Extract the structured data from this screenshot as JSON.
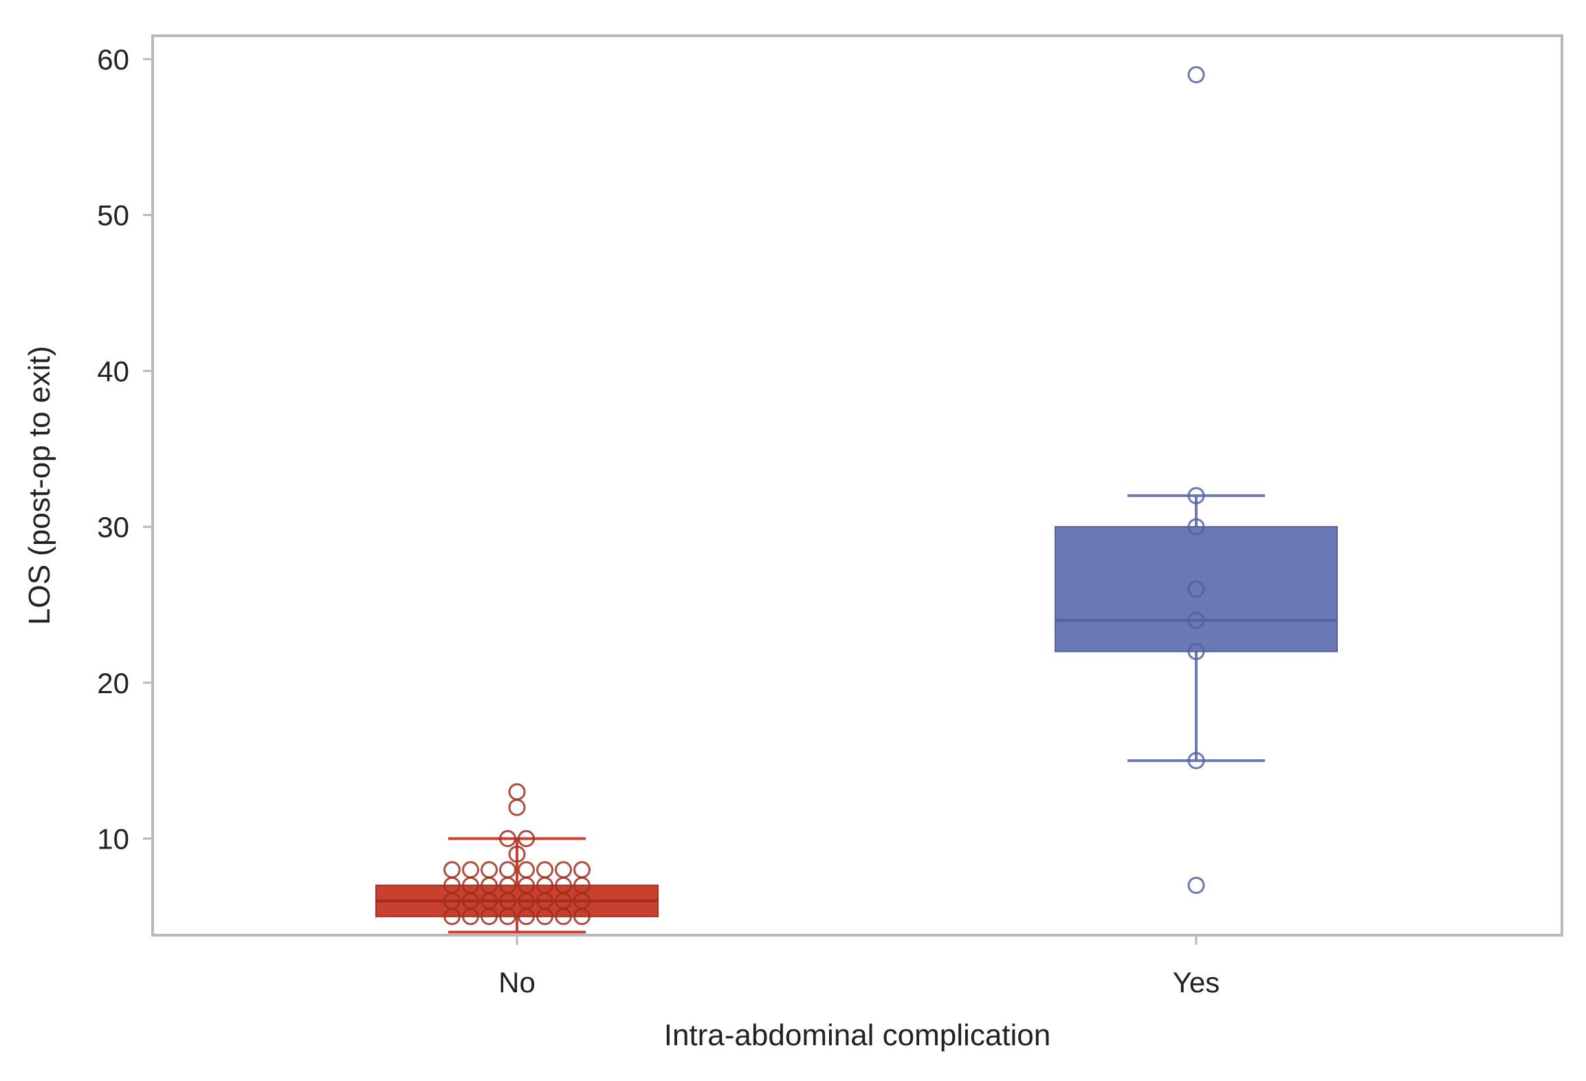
{
  "chart_data": {
    "type": "box",
    "title": "",
    "xlabel": "Intra-abdominal complication",
    "ylabel": "LOS (post-op to exit)",
    "ylim": [
      3.8,
      61.5
    ],
    "yticks": [
      10,
      20,
      30,
      40,
      50,
      60
    ],
    "grid": false,
    "legend": "none",
    "categories": [
      "No",
      "Yes"
    ],
    "series": [
      {
        "category": "No",
        "color": "#c9412e",
        "q1": 5,
        "median": 6,
        "q3": 7,
        "whisker_low": 4,
        "whisker_high": 10,
        "points": [
          13,
          12,
          10,
          10,
          9,
          8,
          8,
          8,
          8,
          8,
          8,
          8,
          8,
          7,
          7,
          7,
          7,
          7,
          7,
          7,
          7,
          6,
          6,
          6,
          6,
          6,
          6,
          6,
          6,
          5,
          5,
          5,
          5,
          5,
          5,
          5,
          5
        ]
      },
      {
        "category": "Yes",
        "color": "#6b78b6",
        "q1": 22,
        "median": 24,
        "q3": 30,
        "whisker_low": 15,
        "whisker_high": 32,
        "points": [
          59,
          32,
          30,
          26,
          24,
          22,
          15,
          7
        ]
      }
    ]
  }
}
